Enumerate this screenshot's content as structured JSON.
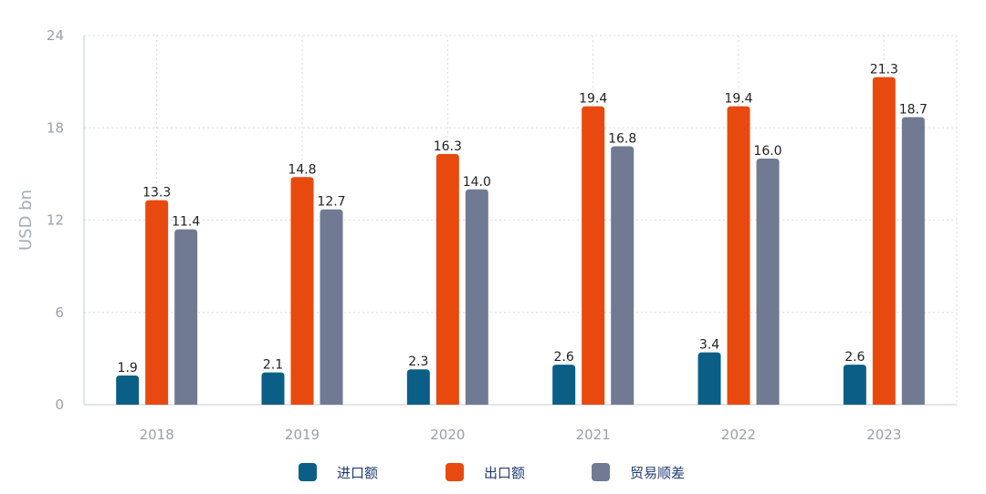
{
  "chart_data": {
    "type": "bar",
    "categories": [
      "2018",
      "2019",
      "2020",
      "2021",
      "2022",
      "2023"
    ],
    "series": [
      {
        "name": "进口额",
        "color": "#0b5f86",
        "values": [
          1.9,
          2.1,
          2.3,
          2.6,
          3.4,
          2.6
        ]
      },
      {
        "name": "出口额",
        "color": "#e8490f",
        "values": [
          13.3,
          14.8,
          16.3,
          19.4,
          19.4,
          21.3
        ]
      },
      {
        "name": "贸易顺差",
        "color": "#717a93",
        "values": [
          11.4,
          12.7,
          14.0,
          16.8,
          16.0,
          18.7
        ]
      }
    ],
    "ylabel": "USD bn",
    "ylim": [
      0,
      24
    ],
    "yticks": [
      0,
      6,
      12,
      18,
      24
    ],
    "grid": true,
    "legend_position": "bottom"
  }
}
